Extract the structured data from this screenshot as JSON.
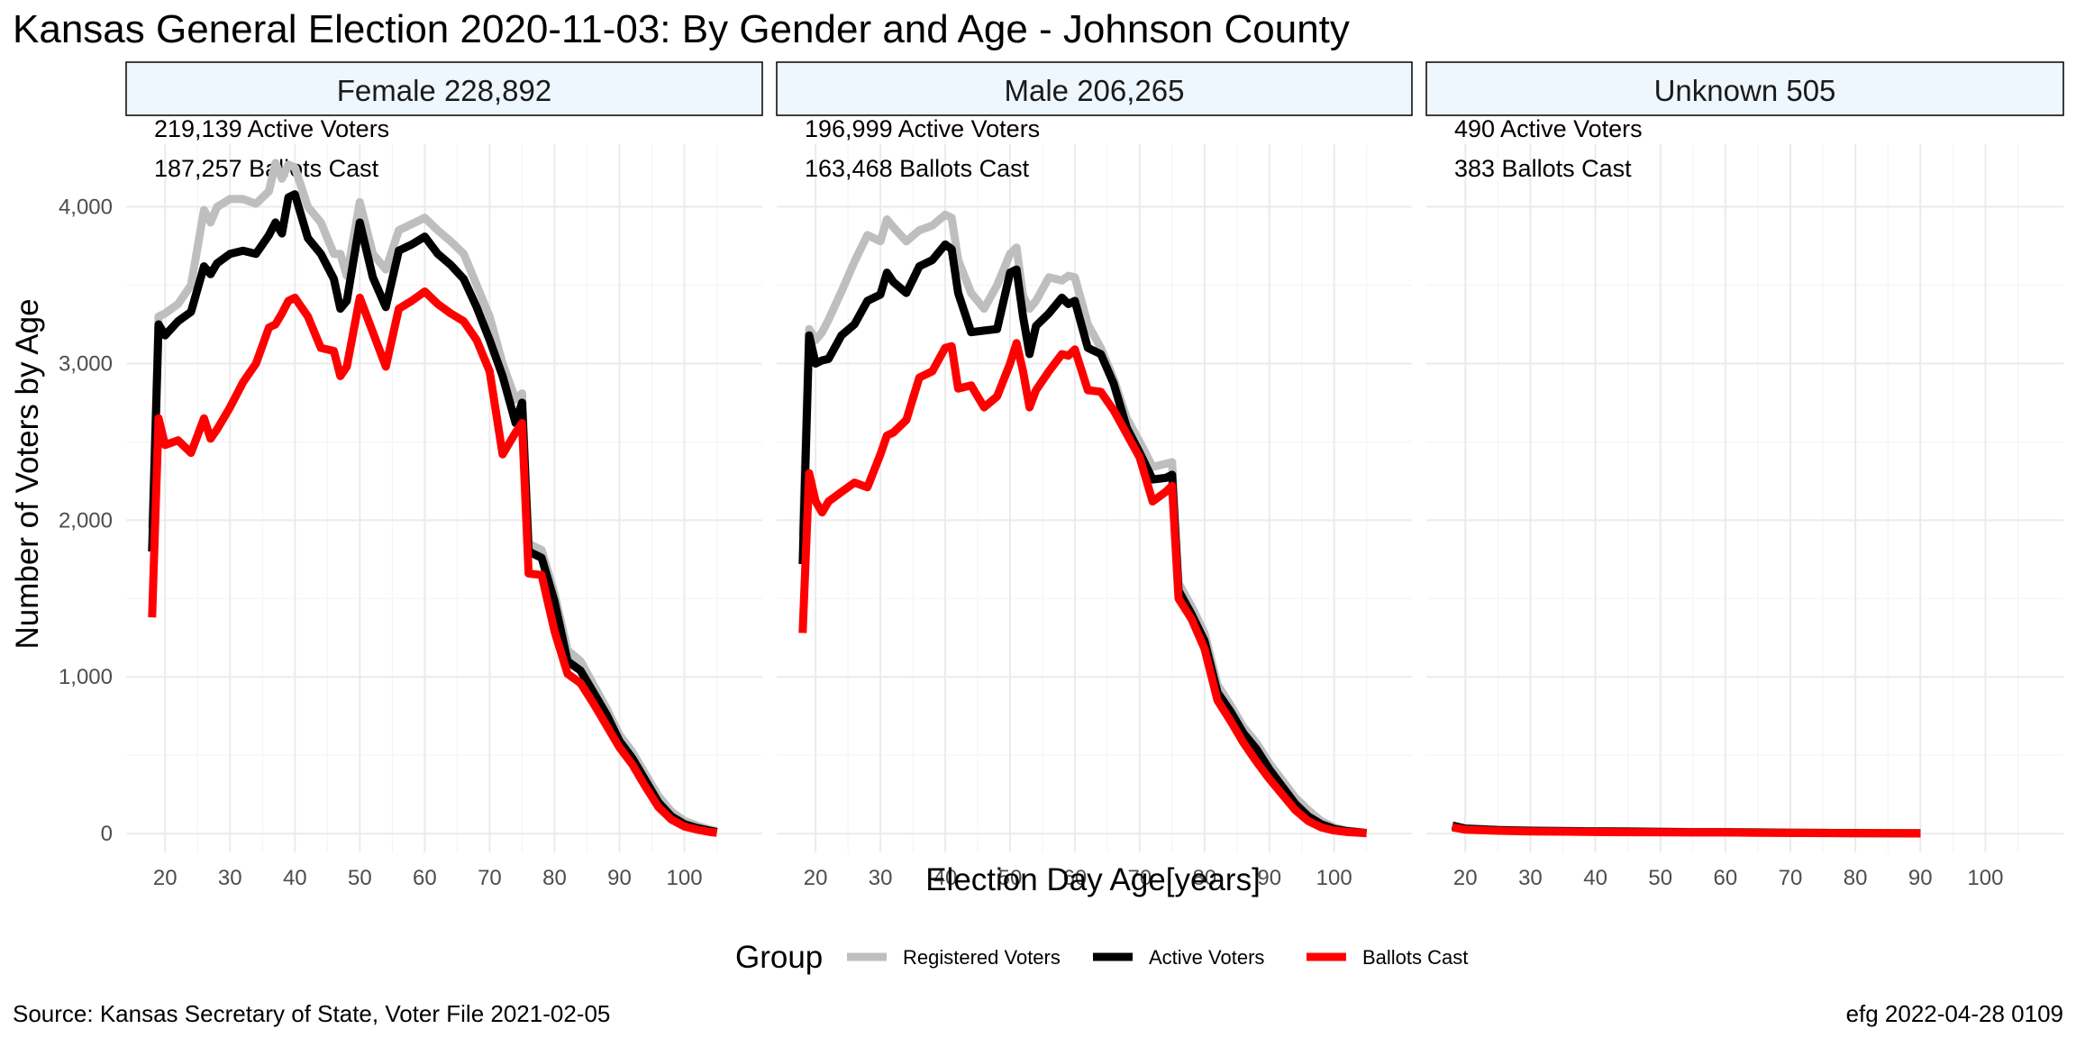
{
  "title": "Kansas General Election 2020-11-03:  By Gender and Age - Johnson County",
  "footer": {
    "source": "Source:  Kansas Secretary of State, Voter File  2021-02-05",
    "stamp": "efg 2022-04-28 0109"
  },
  "colors": {
    "registered": "#bebebe",
    "active": "#000000",
    "ballots": "#ff0000",
    "strip_fill": "#eef6fe",
    "grid": "#ebebeb"
  },
  "chart_data": {
    "type": "line",
    "xlabel": "Election Day Age[years]",
    "ylabel": "Number of Voters by Age",
    "xlim": [
      14,
      112
    ],
    "ylim": [
      -120,
      4400
    ],
    "x_ticks": [
      20,
      30,
      40,
      50,
      60,
      70,
      80,
      90,
      100
    ],
    "y_ticks": [
      0,
      1000,
      2000,
      3000,
      4000
    ],
    "y_tick_labels": [
      "0",
      "1,000",
      "2,000",
      "3,000",
      "4,000"
    ],
    "legend": {
      "title": "Group",
      "position": "bottom",
      "entries": [
        "Registered Voters",
        "Active Voters",
        "Ballots Cast"
      ]
    },
    "series_names": [
      "Registered Voters",
      "Active Voters",
      "Ballots Cast"
    ],
    "panels": [
      {
        "label": "Female 228,892",
        "annotations": [
          "219,139 Active Voters",
          "187,257 Ballots Cast"
        ],
        "x": [
          18,
          19,
          20,
          22,
          24,
          26,
          27,
          28,
          30,
          32,
          34,
          36,
          37,
          38,
          39,
          40,
          42,
          44,
          46,
          47,
          48,
          50,
          52,
          54,
          56,
          58,
          60,
          62,
          64,
          66,
          68,
          70,
          72,
          74,
          75,
          76,
          78,
          80,
          82,
          84,
          86,
          88,
          90,
          92,
          94,
          96,
          98,
          100,
          102,
          104,
          105
        ],
        "registered": [
          1950,
          3300,
          3320,
          3380,
          3500,
          3980,
          3900,
          4000,
          4050,
          4050,
          4020,
          4100,
          4280,
          4180,
          4270,
          4250,
          4000,
          3900,
          3700,
          3700,
          3560,
          4030,
          3700,
          3600,
          3850,
          3890,
          3930,
          3850,
          3780,
          3700,
          3500,
          3300,
          3000,
          2770,
          2810,
          1850,
          1810,
          1530,
          1170,
          1100,
          950,
          800,
          630,
          520,
          380,
          240,
          140,
          80,
          50,
          25,
          15
        ],
        "active": [
          1800,
          3250,
          3180,
          3270,
          3330,
          3620,
          3570,
          3640,
          3700,
          3720,
          3700,
          3820,
          3900,
          3830,
          4060,
          4080,
          3800,
          3700,
          3540,
          3350,
          3400,
          3900,
          3550,
          3360,
          3720,
          3760,
          3810,
          3700,
          3630,
          3540,
          3360,
          3150,
          2920,
          2620,
          2750,
          1800,
          1760,
          1480,
          1100,
          1040,
          900,
          760,
          590,
          480,
          340,
          200,
          110,
          60,
          35,
          18,
          10
        ],
        "ballots": [
          1380,
          2650,
          2480,
          2510,
          2430,
          2650,
          2520,
          2580,
          2720,
          2880,
          3000,
          3230,
          3250,
          3320,
          3400,
          3420,
          3300,
          3100,
          3080,
          2920,
          2980,
          3420,
          3200,
          2980,
          3350,
          3400,
          3460,
          3380,
          3320,
          3270,
          3150,
          2950,
          2420,
          2560,
          2620,
          1660,
          1650,
          1290,
          1020,
          960,
          830,
          690,
          550,
          440,
          300,
          170,
          90,
          45,
          25,
          10,
          5
        ]
      },
      {
        "label": "Male 206,265",
        "annotations": [
          "196,999 Active Voters",
          "163,468 Ballots Cast"
        ],
        "x": [
          18,
          19,
          20,
          21,
          22,
          24,
          26,
          28,
          30,
          31,
          32,
          34,
          36,
          38,
          40,
          41,
          42,
          44,
          46,
          48,
          50,
          51,
          52,
          53,
          54,
          56,
          58,
          59,
          60,
          62,
          64,
          66,
          68,
          70,
          72,
          74,
          75,
          76,
          78,
          80,
          82,
          84,
          86,
          88,
          90,
          92,
          94,
          96,
          98,
          100,
          102,
          104,
          105
        ],
        "registered": [
          1900,
          3220,
          3150,
          3200,
          3280,
          3460,
          3650,
          3820,
          3780,
          3920,
          3870,
          3780,
          3850,
          3880,
          3950,
          3930,
          3660,
          3450,
          3350,
          3500,
          3700,
          3740,
          3430,
          3350,
          3400,
          3550,
          3530,
          3560,
          3550,
          3250,
          3100,
          2900,
          2650,
          2500,
          2340,
          2360,
          2370,
          1600,
          1450,
          1280,
          950,
          820,
          680,
          580,
          450,
          340,
          230,
          150,
          80,
          40,
          20,
          10,
          5
        ],
        "active": [
          1720,
          3180,
          3000,
          3020,
          3030,
          3180,
          3250,
          3400,
          3440,
          3580,
          3520,
          3450,
          3620,
          3660,
          3760,
          3730,
          3450,
          3200,
          3210,
          3220,
          3580,
          3600,
          3300,
          3060,
          3240,
          3320,
          3420,
          3380,
          3400,
          3100,
          3060,
          2870,
          2590,
          2430,
          2260,
          2270,
          2290,
          1550,
          1400,
          1230,
          900,
          780,
          640,
          540,
          410,
          300,
          190,
          110,
          60,
          30,
          15,
          7,
          3
        ],
        "ballots": [
          1280,
          2300,
          2120,
          2050,
          2120,
          2180,
          2240,
          2210,
          2420,
          2540,
          2560,
          2640,
          2910,
          2950,
          3100,
          3110,
          2840,
          2860,
          2720,
          2790,
          3000,
          3130,
          2950,
          2720,
          2830,
          2950,
          3060,
          3050,
          3090,
          2830,
          2820,
          2700,
          2550,
          2400,
          2120,
          2180,
          2220,
          1500,
          1370,
          1180,
          850,
          720,
          580,
          460,
          350,
          250,
          150,
          80,
          40,
          20,
          10,
          5,
          3
        ]
      },
      {
        "label": "Unknown 505",
        "annotations": [
          "490 Active Voters",
          "383 Ballots Cast"
        ],
        "x": [
          18,
          20,
          25,
          30,
          35,
          40,
          45,
          50,
          55,
          60,
          65,
          70,
          75,
          80,
          85,
          90
        ],
        "registered": [
          55,
          35,
          25,
          20,
          18,
          15,
          14,
          12,
          10,
          10,
          8,
          6,
          5,
          4,
          3,
          2
        ],
        "active": [
          50,
          32,
          22,
          18,
          16,
          14,
          13,
          11,
          9,
          9,
          7,
          5,
          4,
          3,
          2,
          2
        ],
        "ballots": [
          40,
          25,
          18,
          14,
          12,
          10,
          9,
          8,
          7,
          7,
          5,
          4,
          3,
          2,
          2,
          1
        ]
      }
    ]
  }
}
